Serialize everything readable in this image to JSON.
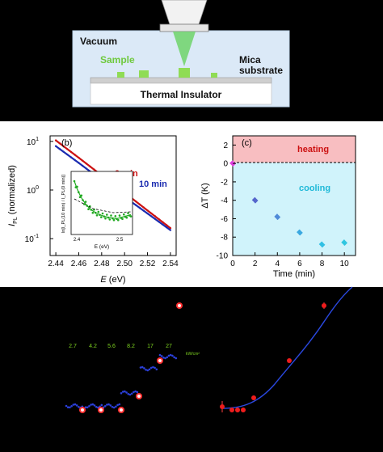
{
  "panel_a": {
    "vacuum": "Vacuum",
    "sample": "Sample",
    "mica": "Mica",
    "substrate": "substrate",
    "insulator": "Thermal Insulator"
  },
  "panel_b": {
    "tag": "(b)",
    "ylabel_main": "I",
    "ylabel_sub": "PL",
    "ylabel_rest": " (normalized)",
    "xlabel_main": "E",
    "xlabel_rest": " (eV)",
    "y_ticks": [
      {
        "base": "10",
        "exp": "1"
      },
      {
        "base": "10",
        "exp": "0"
      },
      {
        "base": "10",
        "exp": "-1"
      }
    ],
    "x_ticks": [
      "2.44",
      "2.46",
      "2.48",
      "2.50",
      "2.52",
      "2.54"
    ],
    "label_0min": "0 min",
    "label_10min": "10 min",
    "inset": {
      "ylabel": "ln[I_PL(10 min) / I_PL(0 min)]",
      "xlabel": "E (eV)",
      "x_ticks": [
        "2.4",
        "2.5"
      ]
    }
  },
  "panel_c": {
    "tag": "(c)",
    "heating": "heating",
    "cooling": "cooling",
    "ylabel": "ΔT (K)",
    "xlabel": "Time (min)",
    "y_ticks": [
      "2",
      "0",
      "-2",
      "-4",
      "-6",
      "-8",
      "-10"
    ],
    "x_ticks": [
      "0",
      "2",
      "4",
      "6",
      "8",
      "10"
    ]
  },
  "panel_d": {
    "power_labels": [
      "2.7",
      "4.2",
      "5.6",
      "8.2",
      "17",
      "27"
    ],
    "unit": "kW/cm²"
  },
  "colors": {
    "red_series": "#cc1111",
    "blue_series": "#1a2bb0",
    "green_inset": "#22aa22",
    "cyan_cooling": "#2fc6e0",
    "heating_band": "#f7b3b6",
    "cooling_band": "#c4f0fa",
    "annotation_green": "#7ed321"
  },
  "chart_data": [
    {
      "type": "line",
      "panel": "b",
      "x": [
        2.44,
        2.46,
        2.48,
        2.5,
        2.52,
        2.54
      ],
      "series": [
        {
          "name": "0 min",
          "values": [
            10.5,
            4.6,
            2.0,
            0.88,
            0.38,
            0.165
          ]
        },
        {
          "name": "10 min",
          "values": [
            8.0,
            3.6,
            1.6,
            0.72,
            0.33,
            0.15
          ]
        }
      ],
      "xlim": [
        2.435,
        2.545
      ],
      "ylim": [
        0.045,
        13
      ],
      "yscale": "log"
    },
    {
      "type": "scatter",
      "panel": "c",
      "x": [
        0,
        2,
        4,
        6,
        8,
        10
      ],
      "values": [
        0,
        -4.0,
        -5.8,
        -7.5,
        -8.8,
        -8.6
      ],
      "errors": [
        0,
        0.3,
        0.3,
        0.3,
        0.3,
        0.3
      ],
      "xlim": [
        0,
        11
      ],
      "ylim": [
        -10,
        3
      ]
    },
    {
      "type": "scatter",
      "panel": "d_right",
      "x": [
        1,
        2,
        3,
        4,
        5,
        6,
        7,
        8
      ],
      "values": [
        0.05,
        0.03,
        0.03,
        0.04,
        0.2,
        0.55,
        1.2,
        1.9
      ]
    }
  ]
}
